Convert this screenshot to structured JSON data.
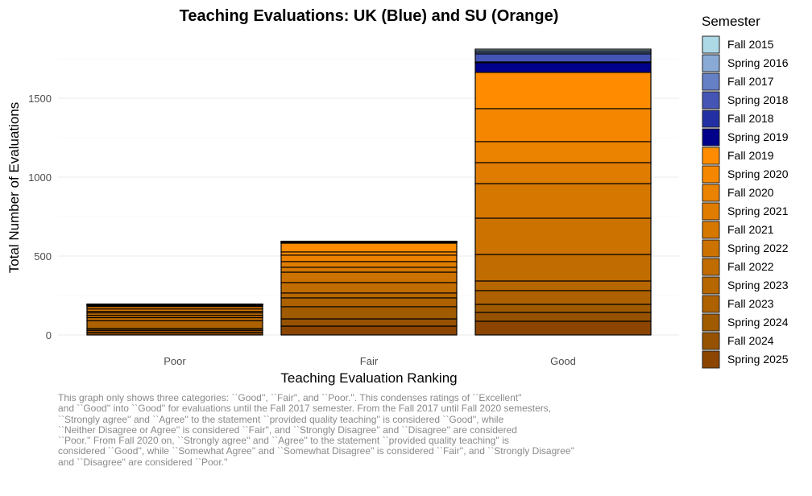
{
  "chart_data": {
    "type": "bar",
    "stacked": true,
    "title": "Teaching Evaluations: UK (Blue) and SU (Orange)",
    "xlabel": "Teaching Evaluation Ranking",
    "ylabel": "Total Number of Evaluations",
    "categories": [
      "Poor",
      "Fair",
      "Good"
    ],
    "ylim": [
      0,
      1850
    ],
    "yticks": [
      0,
      500,
      1000,
      1500
    ],
    "grid": true,
    "legend": {
      "title": "Semester",
      "placement": "right"
    },
    "series": [
      {
        "name": "Fall 2015",
        "color": "#ADD8E6",
        "values": [
          1,
          2,
          10
        ]
      },
      {
        "name": "Spring 2016",
        "color": "#8AAAD6",
        "values": [
          1,
          2,
          10
        ]
      },
      {
        "name": "Fall 2017",
        "color": "#6680C6",
        "values": [
          1,
          2,
          10
        ]
      },
      {
        "name": "Spring 2018",
        "color": "#4455B5",
        "values": [
          1,
          2,
          51
        ]
      },
      {
        "name": "Fall 2018",
        "color": "#2230A3",
        "values": [
          1,
          2,
          5
        ]
      },
      {
        "name": "Spring 2019",
        "color": "#00008B",
        "values": [
          1,
          2,
          61
        ]
      },
      {
        "name": "Fall 2019",
        "color": "#FF8C00",
        "values": [
          5,
          56,
          230
        ]
      },
      {
        "name": "Spring 2020",
        "color": "#F58700",
        "values": [
          5,
          20,
          209
        ]
      },
      {
        "name": "Fall 2020",
        "color": "#EB8200",
        "values": [
          15,
          41,
          133
        ]
      },
      {
        "name": "Spring 2021",
        "color": "#E07C00",
        "values": [
          15,
          36,
          133
        ]
      },
      {
        "name": "Fall 2021",
        "color": "#D67700",
        "values": [
          10,
          31,
          219
        ]
      },
      {
        "name": "Spring 2022",
        "color": "#CC7200",
        "values": [
          15,
          66,
          230
        ]
      },
      {
        "name": "Fall 2022",
        "color": "#C16C00",
        "values": [
          15,
          66,
          168
        ]
      },
      {
        "name": "Spring 2023",
        "color": "#B76700",
        "values": [
          20,
          31,
          61
        ]
      },
      {
        "name": "Fall 2023",
        "color": "#AD6100",
        "values": [
          50,
          56,
          87
        ]
      },
      {
        "name": "Spring 2024",
        "color": "#A05A00",
        "values": [
          10,
          77,
          51
        ]
      },
      {
        "name": "Fall 2024",
        "color": "#965200",
        "values": [
          15,
          46,
          56
        ]
      },
      {
        "name": "Spring 2025",
        "color": "#8B4500",
        "values": [
          15,
          56,
          87
        ]
      }
    ]
  },
  "caption": [
    "This graph only shows three categories: ``Good'', ``Fair'', and ``Poor.''. This condenses ratings of ``Excellent''",
    "and ``Good'' into ``Good'' for evaluations until the Fall 2017 semester. From the Fall 2017 until Fall 2020 semesters,",
    "``Strongly agree'' and ``Agree'' to the statement ``provided quality teaching'' is considered ``Good'', while",
    "``Neither Disagree or Agree'' is considered ``Fair'', and ``Strongly Disagree'' and ``Disagree'' are considered",
    "``Poor.'' From Fall 2020 on, ``Strongly agree'' and ``Agree'' to the statement ``provided quality teaching'' is",
    "considered ``Good'', while ``Somewhat Agree'' and ``Somewhat Disagree'' is considered ``Fair'', and ``Strongly Disagree''",
    "and ``Disagree'' are considered ``Poor.''"
  ]
}
